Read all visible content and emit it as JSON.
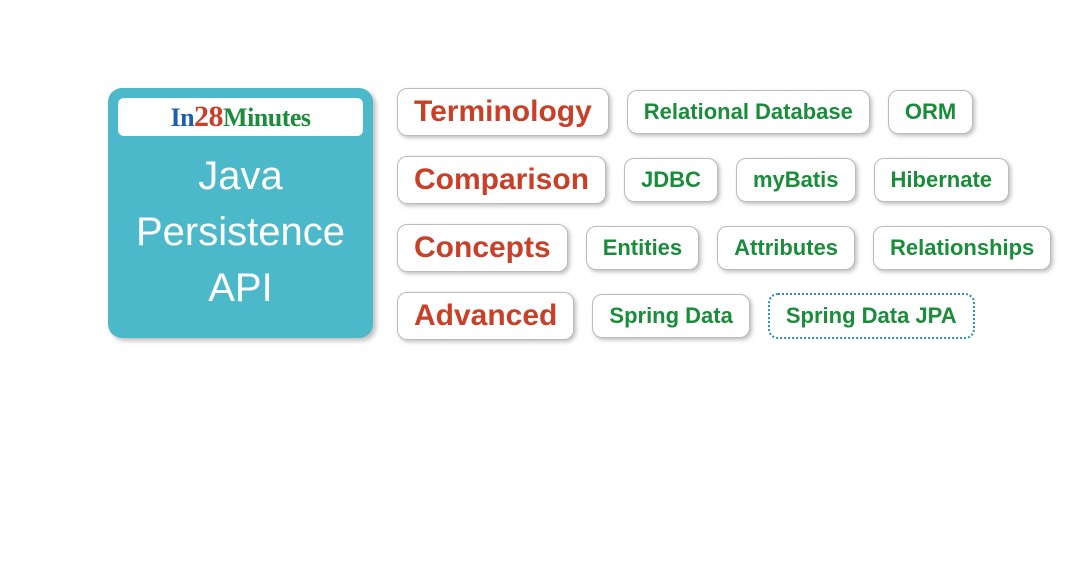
{
  "colors": {
    "card_bg": "#4bb9ca",
    "category_text": "#c94029",
    "item_text": "#1a8c3a",
    "logo_in": "#1a5fb4",
    "logo_28": "#c94029",
    "logo_minutes": "#1a8c3a",
    "selected_border": "#2b8dc4",
    "pill_border": "#bbbbbb",
    "background": "#ffffff",
    "title_text": "#ffffff"
  },
  "typography": {
    "category_fontsize": 30,
    "item_fontsize": 22,
    "title_fontsize": 40,
    "logo_fontsize": 26
  },
  "logo": {
    "part1": "In",
    "part2": "28",
    "part3": "Minutes"
  },
  "title": {
    "line1": "Java",
    "line2": "Persistence",
    "line3": "API"
  },
  "rows": [
    {
      "category": "Terminology",
      "items": [
        "Relational Database",
        "ORM"
      ]
    },
    {
      "category": "Comparison",
      "items": [
        "JDBC",
        "myBatis",
        "Hibernate"
      ]
    },
    {
      "category": "Concepts",
      "items": [
        "Entities",
        "Attributes",
        "Relationships"
      ]
    },
    {
      "category": "Advanced",
      "items": [
        "Spring Data",
        "Spring Data JPA"
      ],
      "selected_index": 1
    }
  ]
}
